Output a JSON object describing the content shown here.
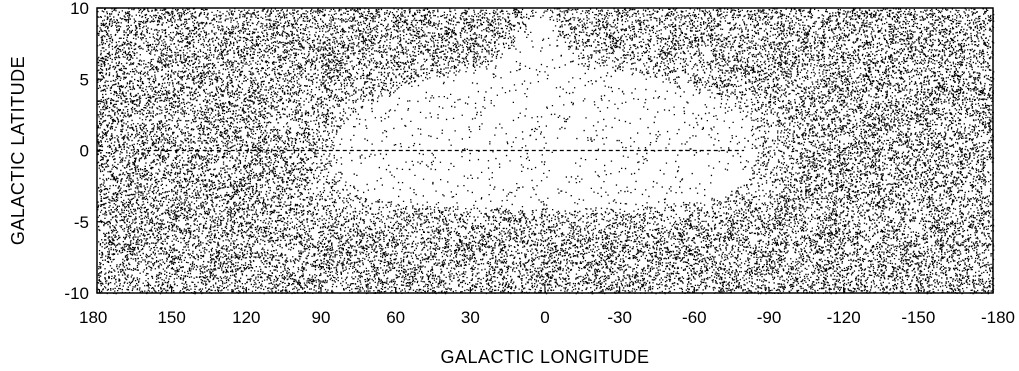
{
  "chart_data": {
    "type": "scatter",
    "title": "",
    "xlabel": "GALACTIC LONGITUDE",
    "ylabel": "GALACTIC LATITUDE",
    "xlim": [
      180,
      -180
    ],
    "ylim": [
      -10,
      10
    ],
    "x_axis_reversed": true,
    "x_ticks": [
      180,
      150,
      120,
      90,
      60,
      30,
      0,
      -30,
      -60,
      -90,
      -120,
      -150,
      -180
    ],
    "x_tick_labels": [
      "180",
      "150",
      "120",
      "90",
      "60",
      "30",
      "0",
      "-30",
      "-60",
      "-90",
      "-120",
      "-150",
      "-180"
    ],
    "y_ticks": [
      -10,
      -5,
      0,
      5,
      10
    ],
    "y_tick_labels": [
      "-10",
      "-5",
      "0",
      "5",
      "10"
    ],
    "grid": false,
    "legend": "none",
    "marker_color": "#000000",
    "background_color": "#ffffff",
    "reference_line": {
      "y": 0,
      "style": "dashed",
      "x_range": [
        160,
        -80
      ]
    },
    "density_description": "Dense point field; sparse elliptical region centered at longitude 0, latitude 0",
    "zone_of_avoidance": {
      "center": [
        0,
        0
      ],
      "longitude_half_width": 85,
      "latitude_half_height": 6,
      "upper_notch": {
        "longitude_range": [
          20,
          -15
        ],
        "latitude_top": 10
      },
      "lower_edge_latitude_approx": -4
    }
  }
}
